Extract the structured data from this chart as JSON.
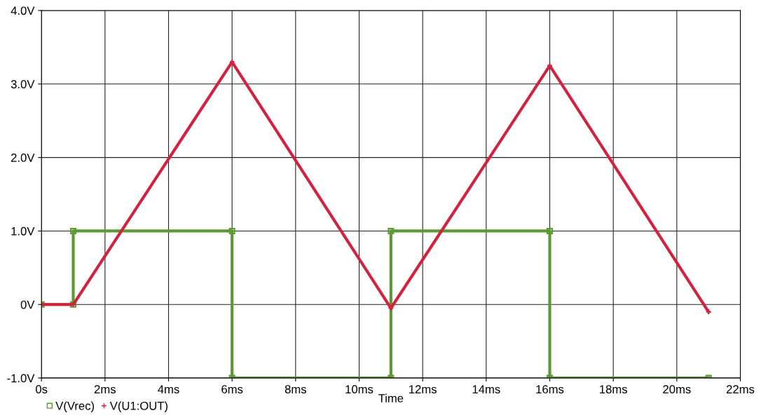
{
  "chart_data": {
    "type": "line",
    "xlabel": "Time",
    "xlim": [
      0,
      22
    ],
    "xticks": [
      {
        "value": 0,
        "label": "0s"
      },
      {
        "value": 2,
        "label": "2ms"
      },
      {
        "value": 4,
        "label": "4ms"
      },
      {
        "value": 6,
        "label": "6ms"
      },
      {
        "value": 8,
        "label": "8ms"
      },
      {
        "value": 10,
        "label": "10ms"
      },
      {
        "value": 12,
        "label": "12ms"
      },
      {
        "value": 14,
        "label": "14ms"
      },
      {
        "value": 16,
        "label": "16ms"
      },
      {
        "value": 18,
        "label": "18ms"
      },
      {
        "value": 20,
        "label": "20ms"
      },
      {
        "value": 22,
        "label": "22ms"
      }
    ],
    "ylim": [
      -1,
      4
    ],
    "yticks": [
      {
        "value": -1,
        "label": "-1.0V"
      },
      {
        "value": 0,
        "label": "0V"
      },
      {
        "value": 1,
        "label": "1.0V"
      },
      {
        "value": 2,
        "label": "2.0V"
      },
      {
        "value": 3,
        "label": "3.0V"
      },
      {
        "value": 4,
        "label": "4.0V"
      }
    ],
    "grid": true,
    "legend": "bottom left",
    "series": [
      {
        "name": "V(Vrec)",
        "color": "#5b9a32",
        "marker": "square",
        "x": [
          0,
          1,
          1,
          6,
          6,
          11,
          11,
          16,
          16,
          21
        ],
        "values": [
          0,
          0,
          1,
          1,
          -1,
          -1,
          1,
          1,
          -1,
          -1
        ]
      },
      {
        "name": "V(U1:OUT)",
        "color": "#d2223f",
        "marker": "cross",
        "x": [
          0,
          1,
          6,
          11,
          16,
          21
        ],
        "values": [
          0,
          0,
          3.3,
          -0.05,
          3.25,
          -0.1
        ]
      }
    ]
  }
}
